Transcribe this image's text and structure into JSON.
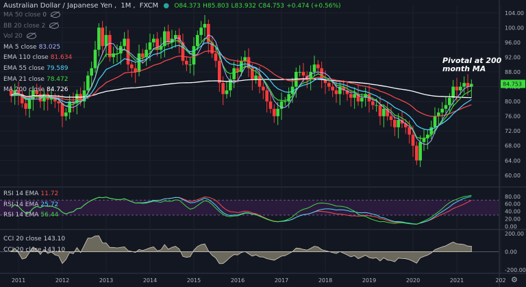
{
  "header": {
    "title": "Australian Dollar / Japanese Yen",
    "interval": "1M",
    "exchange": "FXCM",
    "open": "O84.373",
    "high": "H85.803",
    "low": "L83.932",
    "close": "C84.753",
    "change": "+0.474 (+0.56%)"
  },
  "legend": [
    {
      "label": "MA 50 close",
      "value": "0",
      "hidden": true,
      "color": "#7f838d"
    },
    {
      "label": "BB 20 close 2",
      "value": "",
      "hidden": true,
      "color": "#7f838d"
    },
    {
      "label": "Vol 20",
      "value": "",
      "hidden": true,
      "color": "#7f838d"
    },
    {
      "label": "MA 5 close",
      "value": "83.025",
      "hidden": false,
      "color": "#a9b4ff"
    },
    {
      "label": "EMA 110 close",
      "value": "81.634",
      "hidden": false,
      "color": "#ff4d4d"
    },
    {
      "label": "EMA 55 close",
      "value": "79.589",
      "hidden": false,
      "color": "#4fd8ff"
    },
    {
      "label": "EMA 21 close",
      "value": "78.472",
      "hidden": false,
      "color": "#3ddc3d"
    },
    {
      "label": "MA 200 close",
      "value": "84.726",
      "hidden": false,
      "color": "#ffffff"
    }
  ],
  "rsi_legend": [
    {
      "label": "RSI 14 EMA",
      "value": "11.72",
      "color": "#ff4d4d"
    },
    {
      "label": "RSI 14 EMA",
      "value": "25.72",
      "color": "#4fd8ff"
    },
    {
      "label": "RSI 14 EMA",
      "value": "56.44",
      "color": "#3ddc3d"
    }
  ],
  "cci_legend": [
    {
      "label": "CCI 20 close",
      "value": "143.10"
    },
    {
      "label": "CCI 20 close",
      "value": "143.10"
    }
  ],
  "annotation": {
    "line1": "Pivotal at 200",
    "line2": "month MA"
  },
  "colors": {
    "up": "#26a69a",
    "up_body": "#3ddc3d",
    "down": "#ff3b3b",
    "bg": "#131722",
    "text": "#b2b5be"
  },
  "chart_data": [
    {
      "type": "candlestick",
      "title": "Australian Dollar / Japanese Yen 1M FXCM",
      "x_ticks": [
        "2011",
        "2012",
        "2013",
        "2014",
        "2015",
        "2016",
        "2017",
        "2018",
        "2019",
        "2020",
        "2021",
        "202"
      ],
      "y_ticks": [
        60,
        64,
        68,
        72,
        76,
        80,
        84,
        88,
        92,
        96,
        100,
        104
      ],
      "ylim": [
        57,
        106
      ],
      "last_price_label": "84.753",
      "close_series": [
        81.5,
        83,
        82,
        79.5,
        78,
        80.5,
        83,
        82,
        80,
        82,
        80.5,
        81,
        80,
        79.5,
        76,
        77,
        80,
        79.5,
        82,
        80,
        83,
        87,
        89,
        94,
        100,
        95,
        98,
        92,
        93,
        93,
        95,
        97,
        90,
        89,
        88,
        93,
        92,
        94,
        96,
        97,
        94,
        95,
        99,
        96,
        97,
        98,
        96,
        91,
        90,
        90,
        95,
        98,
        100,
        101,
        96,
        93,
        91,
        85,
        82,
        83,
        86,
        89,
        88,
        91,
        92,
        89,
        86,
        87,
        84,
        83,
        80,
        78,
        76,
        78,
        80,
        80,
        82,
        84,
        88,
        88,
        87,
        86,
        88,
        90,
        89,
        86,
        85,
        84,
        83,
        82,
        84,
        83,
        82,
        81,
        82,
        80,
        81,
        82,
        80,
        79,
        79,
        76,
        78,
        76,
        75,
        73,
        75,
        74,
        73,
        71,
        68,
        64,
        69,
        70,
        71,
        73,
        76,
        77,
        78,
        79,
        81,
        84,
        83,
        84,
        85,
        84,
        84.75
      ],
      "annotations": [
        "Pivotal at 200 month MA"
      ]
    },
    {
      "type": "line",
      "title": "RSI 14 EMA",
      "y_ticks": [
        0,
        20,
        40,
        60,
        80
      ],
      "ylim": [
        -5,
        100
      ],
      "series": [
        {
          "name": "RSI 14 EMA",
          "value_label": "11.72"
        },
        {
          "name": "RSI 14 EMA",
          "value_label": "25.72"
        },
        {
          "name": "RSI 14 EMA",
          "value_label": "56.44"
        }
      ]
    },
    {
      "type": "area",
      "title": "CCI 20 close",
      "y_ticks": [
        -200,
        0,
        200
      ],
      "ylim": [
        -230,
        230
      ],
      "series": [
        {
          "name": "CCI 20 close",
          "value_label": "143.10"
        }
      ]
    }
  ]
}
